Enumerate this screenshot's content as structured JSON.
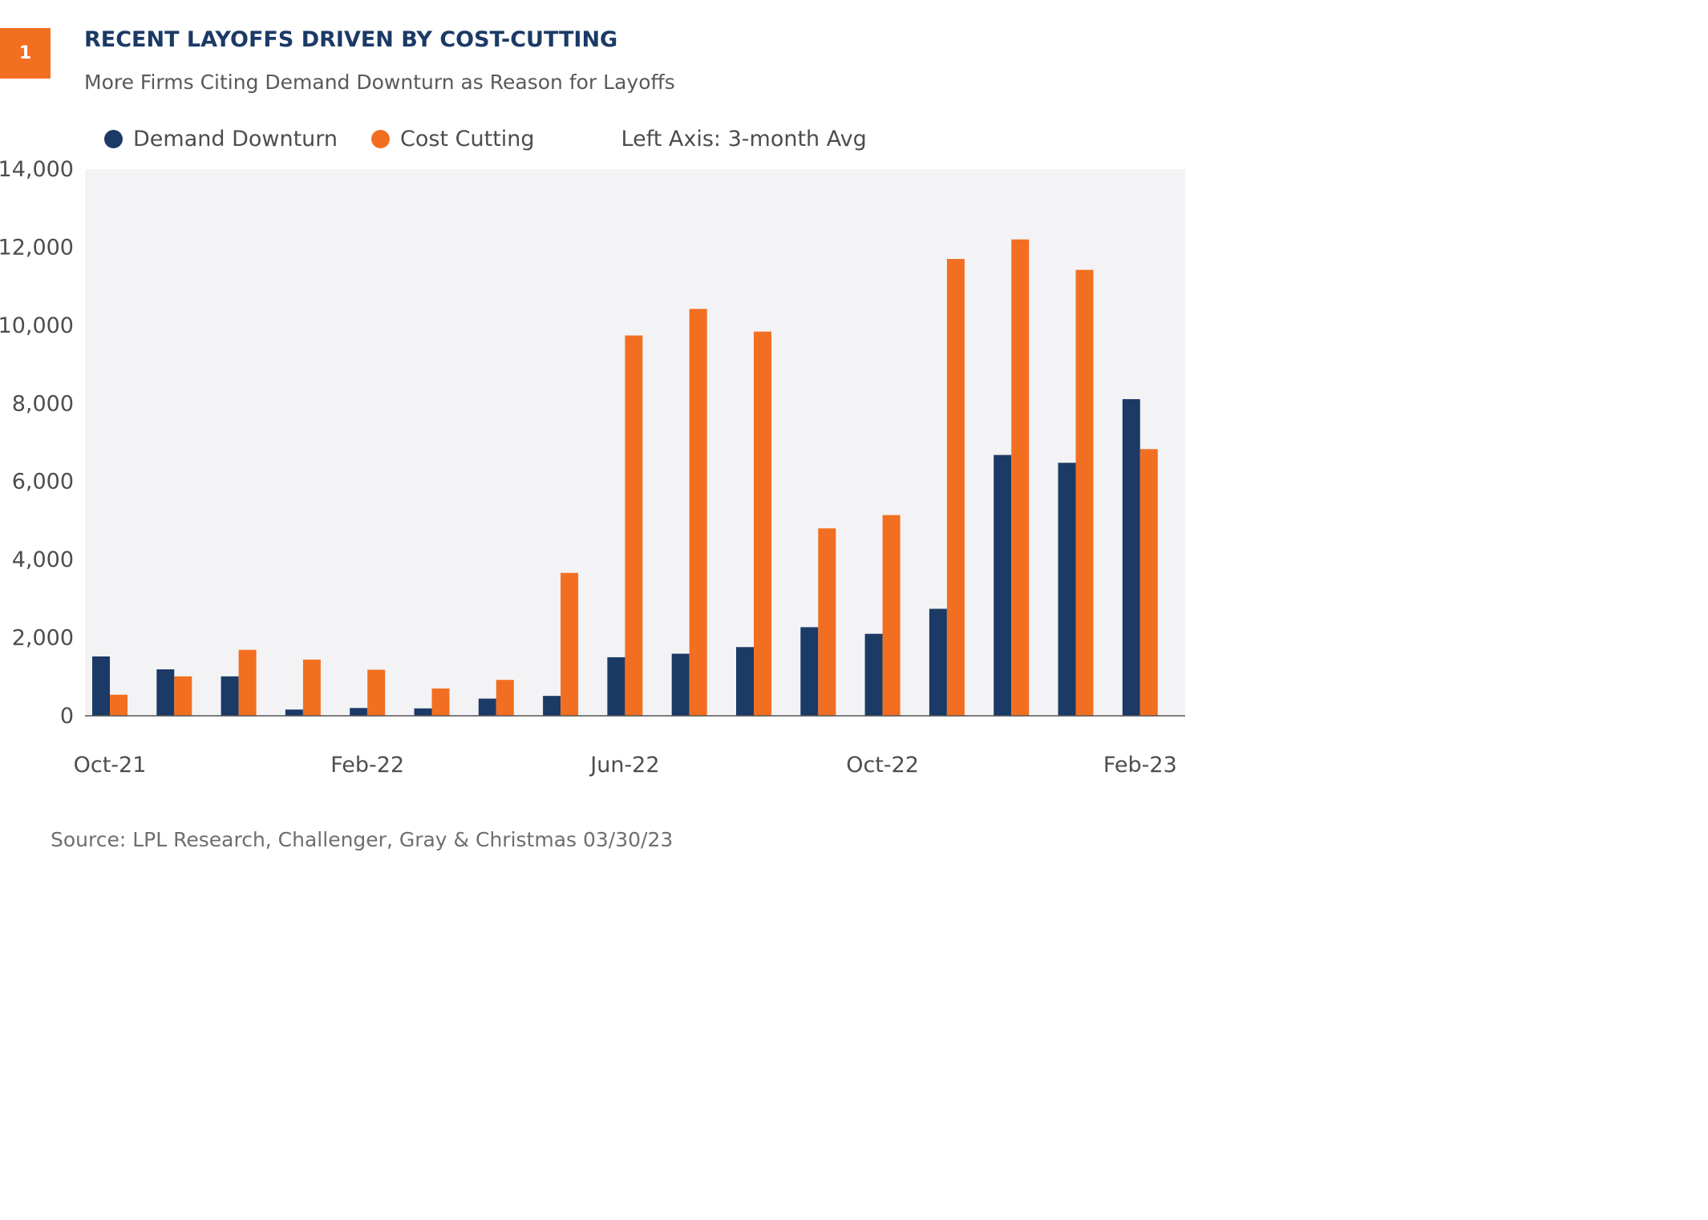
{
  "badge": "1",
  "colors": {
    "demand": "#1b3a66",
    "cost": "#f26f21",
    "plot_background": "#f3f3f5",
    "axis": "#555555"
  },
  "legend": {
    "demand_label": "Demand Downturn",
    "cost_label": "Cost Cutting",
    "note": "Left Axis: 3-month Avg"
  },
  "source": "Source: LPL Research, Challenger, Gray & Christmas  03/30/23",
  "chart_data": {
    "type": "bar",
    "title": "RECENT LAYOFFS DRIVEN BY COST-CUTTING",
    "subtitle": "More Firms Citing Demand Downturn as Reason for Layoffs",
    "categories": [
      "Oct-21",
      "Nov-21",
      "Dec-21",
      "Jan-22",
      "Feb-22",
      "Mar-22",
      "Apr-22",
      "May-22",
      "Jun-22",
      "Jul-22",
      "Aug-22",
      "Sep-22",
      "Oct-22",
      "Nov-22",
      "Dec-22",
      "Jan-23",
      "Feb-23"
    ],
    "x_tick_labels": [
      "Oct-21",
      "Feb-22",
      "Jun-22",
      "Oct-22",
      "Feb-23"
    ],
    "series": [
      {
        "name": "Demand Downturn",
        "values": [
          1520,
          1190,
          1010,
          160,
          200,
          190,
          440,
          510,
          1500,
          1590,
          1760,
          2270,
          2100,
          2740,
          6680,
          6480,
          8110
        ]
      },
      {
        "name": "Cost Cutting",
        "values": [
          540,
          1010,
          1690,
          1440,
          1180,
          700,
          920,
          3660,
          9740,
          10420,
          9840,
          4800,
          5140,
          11700,
          12200,
          11420,
          6830
        ]
      }
    ],
    "ylim": [
      0,
      14000
    ],
    "y_ticks": [
      0,
      2000,
      4000,
      6000,
      8000,
      10000,
      12000,
      14000
    ],
    "y_tick_labels": [
      "0",
      "2,000",
      "4,000",
      "6,000",
      "8,000",
      "10,000",
      "12,000",
      "14,000"
    ],
    "xlabel": "",
    "ylabel": "",
    "grid": false,
    "legend_position": "top-left"
  }
}
